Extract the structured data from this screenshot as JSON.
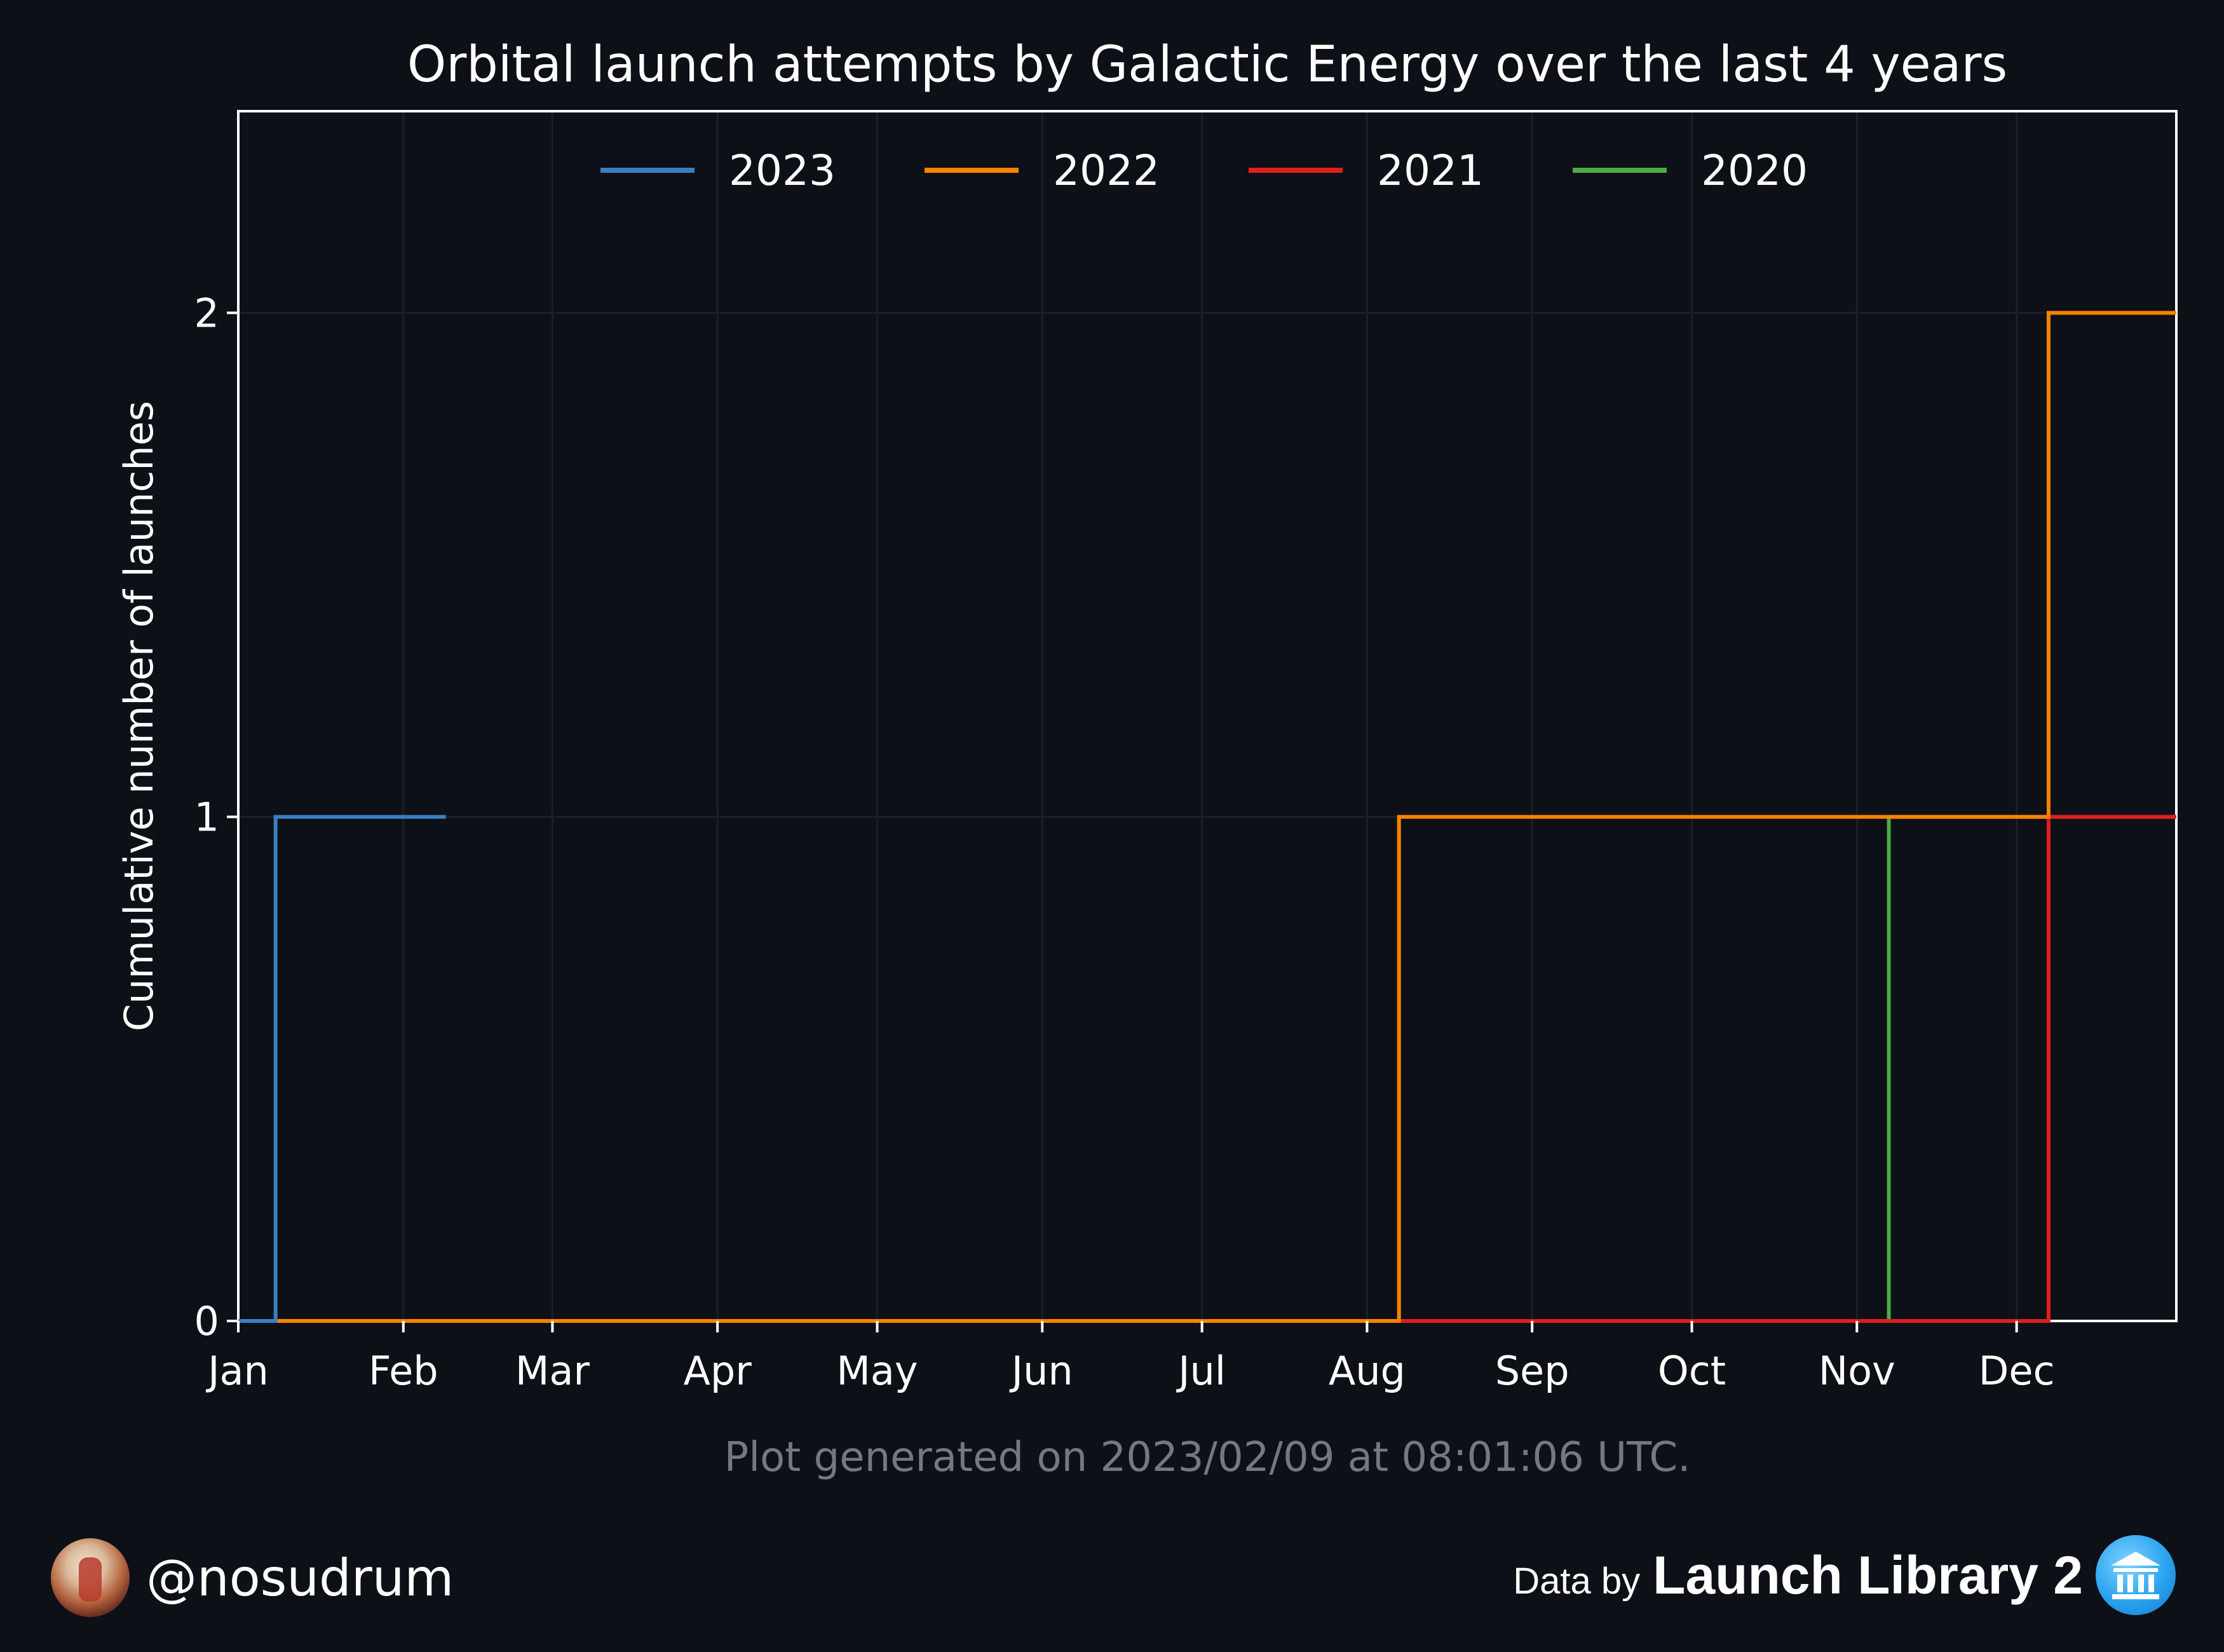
{
  "chart_data": {
    "type": "line",
    "step": true,
    "title": "Orbital launch attempts by Galactic Energy over the last 4 years",
    "xlabel": "",
    "ylabel": "Cumulative number of launches",
    "x_ticks": [
      "Jan",
      "Feb",
      "Mar",
      "Apr",
      "May",
      "Jun",
      "Jul",
      "Aug",
      "Sep",
      "Oct",
      "Nov",
      "Dec"
    ],
    "xlim": [
      "01-01",
      "12-31"
    ],
    "ylim": [
      0,
      2.4
    ],
    "y_ticks": [
      0,
      1,
      2
    ],
    "grid": true,
    "legend_position": "top-center",
    "series": [
      {
        "name": "2023",
        "color": "#3a7fc1",
        "x": [
          "01-01",
          "01-08",
          "02-09"
        ],
        "y": [
          0,
          1,
          1
        ]
      },
      {
        "name": "2022",
        "color": "#ff8200",
        "x": [
          "01-01",
          "08-07",
          "12-07",
          "12-31"
        ],
        "y": [
          0,
          1,
          2,
          2
        ]
      },
      {
        "name": "2021",
        "color": "#e01e1e",
        "x": [
          "01-01",
          "12-07",
          "12-31"
        ],
        "y": [
          0,
          1,
          1
        ]
      },
      {
        "name": "2020",
        "color": "#4faa45",
        "x": [
          "01-01",
          "11-07",
          "12-31"
        ],
        "y": [
          0,
          1,
          1
        ]
      }
    ]
  },
  "footer": {
    "generated": "Plot generated on 2023/02/09 at 08:01:06 UTC.",
    "handle": "@nosudrum",
    "data_by": "Data by",
    "source": "Launch Library 2"
  }
}
